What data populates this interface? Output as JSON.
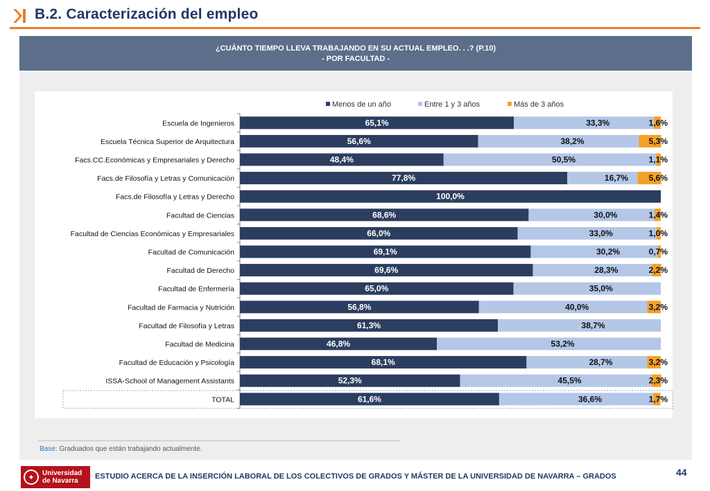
{
  "header": {
    "title": "B.2. Caracterización del empleo"
  },
  "banner": {
    "line1": "¿CUÁNTO TIEMPO LLEVA TRABAJANDO EN SU ACTUAL EMPLEO. . .? (P.10)",
    "line2": "- POR FACULTAD -"
  },
  "colors": {
    "series1": "#2c3e5f",
    "series2": "#b4c7e7",
    "series3": "#f4a029"
  },
  "chart_data": {
    "type": "bar",
    "orientation": "horizontal",
    "stacked": true,
    "title": "¿CUÁNTO TIEMPO LLEVA TRABAJANDO EN SU ACTUAL EMPLEO. . .? (P.10) - POR FACULTAD -",
    "categories": [
      "Escuela de Ingenieros",
      "Escuela Técnica Superior de Arquitectura",
      "Facs.CC.Económicas y Empresariales y Derecho",
      "Facs.de Filosofía y Letras y Comunicación",
      "Facs.de Filosofía y Letras y Derecho",
      "Facultad de Ciencias",
      "Facultad de Ciencias Económicas y Empresariales",
      "Facultad de Comunicación",
      "Facultad de Derecho",
      "Facultad de Enfermería",
      "Facultad de Farmacia y Nutrición",
      "Facultad de Filosofía y Letras",
      "Facultad de Medicina",
      "Facultad de Educación y Psicología",
      "ISSA-School of Management Assistants",
      "TOTAL"
    ],
    "series": [
      {
        "name": "Menos de un año",
        "values": [
          65.1,
          56.6,
          48.4,
          77.8,
          100.0,
          68.6,
          66.0,
          69.1,
          69.6,
          65.0,
          56.8,
          61.3,
          46.8,
          68.1,
          52.3,
          61.6
        ],
        "labels": [
          "65,1%",
          "56,6%",
          "48,4%",
          "77,8%",
          "100,0%",
          "68,6%",
          "66,0%",
          "69,1%",
          "69,6%",
          "65,0%",
          "56,8%",
          "61,3%",
          "46,8%",
          "68,1%",
          "52,3%",
          "61,6%"
        ]
      },
      {
        "name": "Entre 1 y 3 años",
        "values": [
          33.3,
          38.2,
          50.5,
          16.7,
          0,
          30.0,
          33.0,
          30.2,
          28.3,
          35.0,
          40.0,
          38.7,
          53.2,
          28.7,
          45.5,
          36.6
        ],
        "labels": [
          "33,3%",
          "38,2%",
          "50,5%",
          "16,7%",
          "",
          "30,0%",
          "33,0%",
          "30,2%",
          "28,3%",
          "35,0%",
          "40,0%",
          "38,7%",
          "53,2%",
          "28,7%",
          "45,5%",
          "36,6%"
        ]
      },
      {
        "name": "Más de 3 años",
        "values": [
          1.6,
          5.3,
          1.1,
          5.6,
          0,
          1.4,
          1.0,
          0.7,
          2.2,
          0,
          3.2,
          0,
          0,
          3.2,
          2.3,
          1.7
        ],
        "labels": [
          "1,6%",
          "5,3%",
          "1,1%",
          "5,6%",
          "",
          "1,4%",
          "1,0%",
          "0,7%",
          "2,2%",
          "",
          "3,2%",
          "",
          "",
          "3,2%",
          "2,3%",
          "1,7%"
        ]
      }
    ],
    "xlim": [
      0,
      100
    ],
    "legend": "top-center"
  },
  "base": {
    "label": "Base:",
    "text": " Graduados que están trabajando actualmente."
  },
  "footer": {
    "logo_line1": "Universidad",
    "logo_line2": "de Navarra",
    "text": "ESTUDIO ACERCA DE LA INSERCIÓN LABORAL DE LOS COLECTIVOS DE GRADOS Y MÁSTER DE LA UNIVERSIDAD DE NAVARRA – GRADOS",
    "page": "44"
  }
}
